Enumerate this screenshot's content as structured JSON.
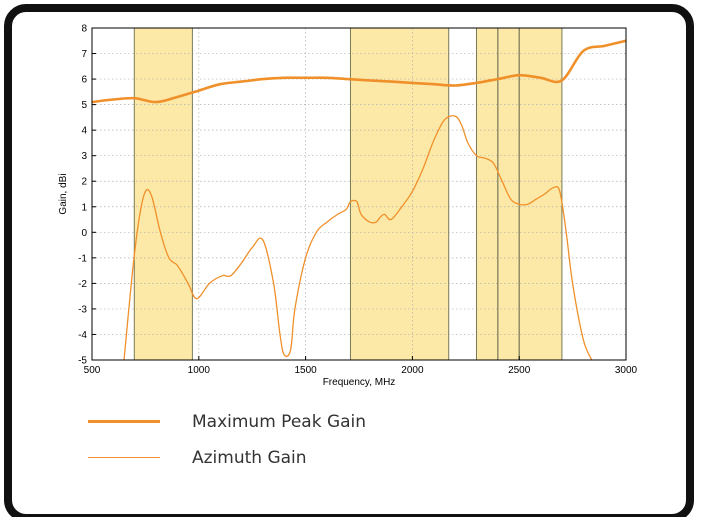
{
  "chart_data": {
    "type": "line",
    "xlabel": "Frequency, MHz",
    "ylabel": "Gain, dBi",
    "xlim": [
      500,
      3000
    ],
    "ylim": [
      -5,
      8
    ],
    "xticks": [
      "500",
      "1000",
      "1500",
      "2000",
      "2500",
      "3000"
    ],
    "yticks": [
      "8",
      "7",
      "6",
      "5",
      "4",
      "3",
      "2",
      "1",
      "0",
      "-1",
      "-2",
      "-3",
      "-4",
      "-5"
    ],
    "grid": true,
    "shaded_bands": [
      [
        698,
        970
      ],
      [
        1710,
        2170
      ],
      [
        2300,
        2400
      ],
      [
        2400,
        2500
      ],
      [
        2500,
        2700
      ]
    ],
    "series": [
      {
        "name": "Maximum Peak Gain",
        "color": "#f0902a",
        "style": "thick",
        "x": [
          500,
          600,
          700,
          800,
          900,
          1000,
          1100,
          1200,
          1300,
          1400,
          1500,
          1600,
          1700,
          1800,
          1900,
          2000,
          2100,
          2200,
          2300,
          2400,
          2500,
          2600,
          2700,
          2800,
          2900,
          3000
        ],
        "y": [
          5.1,
          5.2,
          5.25,
          5.1,
          5.3,
          5.55,
          5.8,
          5.9,
          6.0,
          6.05,
          6.05,
          6.05,
          6.0,
          5.95,
          5.9,
          5.85,
          5.8,
          5.75,
          5.85,
          6.0,
          6.15,
          6.05,
          5.95,
          7.1,
          7.3,
          7.5
        ]
      },
      {
        "name": "Azimuth Gain",
        "color": "#f0902a",
        "style": "thin",
        "x": [
          650,
          690,
          720,
          750,
          780,
          820,
          860,
          900,
          950,
          990,
          1050,
          1110,
          1150,
          1200,
          1250,
          1300,
          1350,
          1380,
          1400,
          1430,
          1450,
          1500,
          1550,
          1600,
          1650,
          1690,
          1710,
          1740,
          1760,
          1800,
          1830,
          1850,
          1870,
          1900,
          1950,
          2000,
          2050,
          2100,
          2150,
          2200,
          2230,
          2260,
          2300,
          2340,
          2380,
          2420,
          2460,
          2500,
          2540,
          2580,
          2620,
          2660,
          2690,
          2720,
          2750,
          2800,
          2840
        ],
        "y": [
          -5.0,
          -1.5,
          0.5,
          1.6,
          1.4,
          0.0,
          -1.0,
          -1.3,
          -2.0,
          -2.6,
          -2.0,
          -1.7,
          -1.7,
          -1.2,
          -0.6,
          -0.3,
          -2.0,
          -4.0,
          -4.8,
          -4.6,
          -3.0,
          -1.0,
          0.0,
          0.4,
          0.7,
          0.9,
          1.2,
          1.2,
          0.7,
          0.4,
          0.4,
          0.6,
          0.7,
          0.5,
          1.0,
          1.6,
          2.5,
          3.6,
          4.4,
          4.55,
          4.2,
          3.5,
          3.0,
          2.9,
          2.7,
          2.0,
          1.3,
          1.1,
          1.1,
          1.3,
          1.5,
          1.75,
          1.6,
          0.0,
          -2.0,
          -4.2,
          -5.0
        ]
      }
    ]
  },
  "legend": {
    "items": [
      {
        "label": "Maximum Peak Gain"
      },
      {
        "label": "Azimuth Gain"
      }
    ]
  },
  "colors": {
    "frame": "#111111",
    "band_fill": "#fde9a7",
    "band_edge": "#7a7a5a",
    "line": "#f0902a"
  }
}
